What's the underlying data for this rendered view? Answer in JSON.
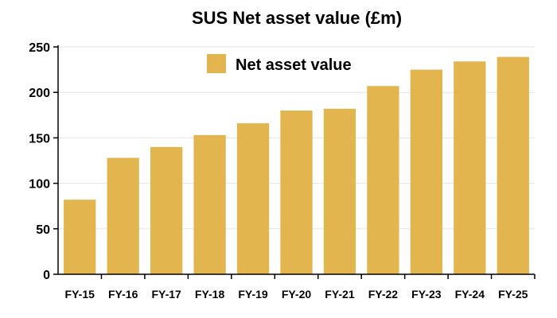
{
  "chart_data": {
    "type": "bar",
    "title": "SUS Net asset value (£m)",
    "categories": [
      "FY-15",
      "FY-16",
      "FY-17",
      "FY-18",
      "FY-19",
      "FY-20",
      "FY-21",
      "FY-22",
      "FY-23",
      "FY-24",
      "FY-25"
    ],
    "series": [
      {
        "name": "Net asset value",
        "color": "#E3B54F",
        "values": [
          82,
          128,
          140,
          153,
          166,
          180,
          182,
          207,
          225,
          234,
          239
        ]
      }
    ],
    "ylim": [
      0,
      250
    ],
    "yticks": [
      0,
      50,
      100,
      150,
      200,
      250
    ],
    "grid": true,
    "legend_position": "top-left"
  }
}
